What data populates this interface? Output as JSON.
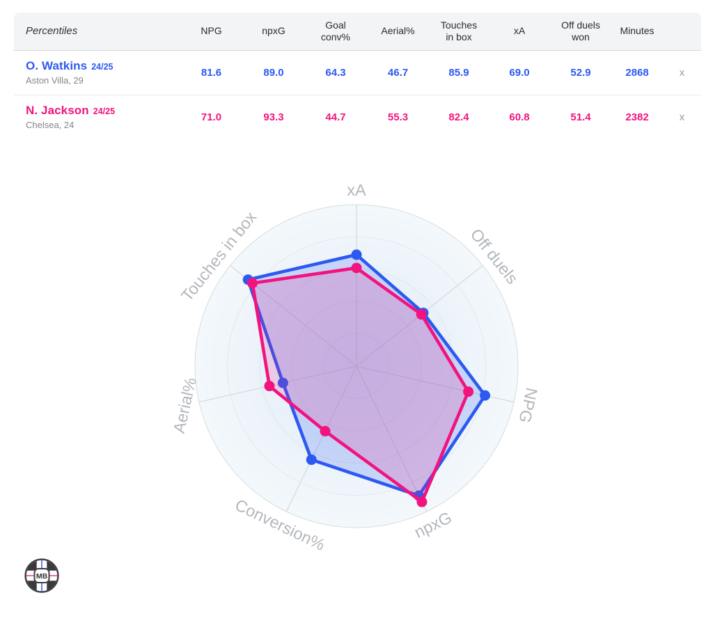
{
  "table": {
    "corner_label": "Percentiles",
    "columns": [
      "NPG",
      "npxG",
      "Goal\nconv%",
      "Aerial%",
      "Touches\nin box",
      "xA",
      "Off duels\nwon",
      "Minutes"
    ],
    "remove_label": "x",
    "players": [
      {
        "name": "O. Watkins",
        "season": "24/25",
        "subtitle": "Aston Villa, 29",
        "color": "#2d59f0",
        "values": [
          "81.6",
          "89.0",
          "64.3",
          "46.7",
          "85.9",
          "69.0",
          "52.9",
          "2868"
        ]
      },
      {
        "name": "N. Jackson",
        "season": "24/25",
        "subtitle": "Chelsea, 24",
        "color": "#f2137e",
        "values": [
          "71.0",
          "93.3",
          "44.7",
          "55.3",
          "82.4",
          "60.8",
          "51.4",
          "2382"
        ]
      }
    ]
  },
  "chart_data": {
    "type": "radar",
    "axes": [
      "xA",
      "Off duels",
      "NPG",
      "npxG",
      "Conversion%",
      "Aerial%",
      "Touches in box"
    ],
    "range": [
      0,
      100
    ],
    "start": "top",
    "direction": "clockwise",
    "grid": "concentric-circles",
    "legend_position": "none",
    "series": [
      {
        "name": "O. Watkins",
        "color": "#2d59f0",
        "values": [
          69.0,
          52.9,
          81.6,
          89.0,
          64.3,
          46.7,
          85.9
        ]
      },
      {
        "name": "N. Jackson",
        "color": "#f2137e",
        "values": [
          60.8,
          51.4,
          71.0,
          93.3,
          44.7,
          55.3,
          82.4
        ]
      }
    ]
  },
  "logo": {
    "text": "MB"
  }
}
